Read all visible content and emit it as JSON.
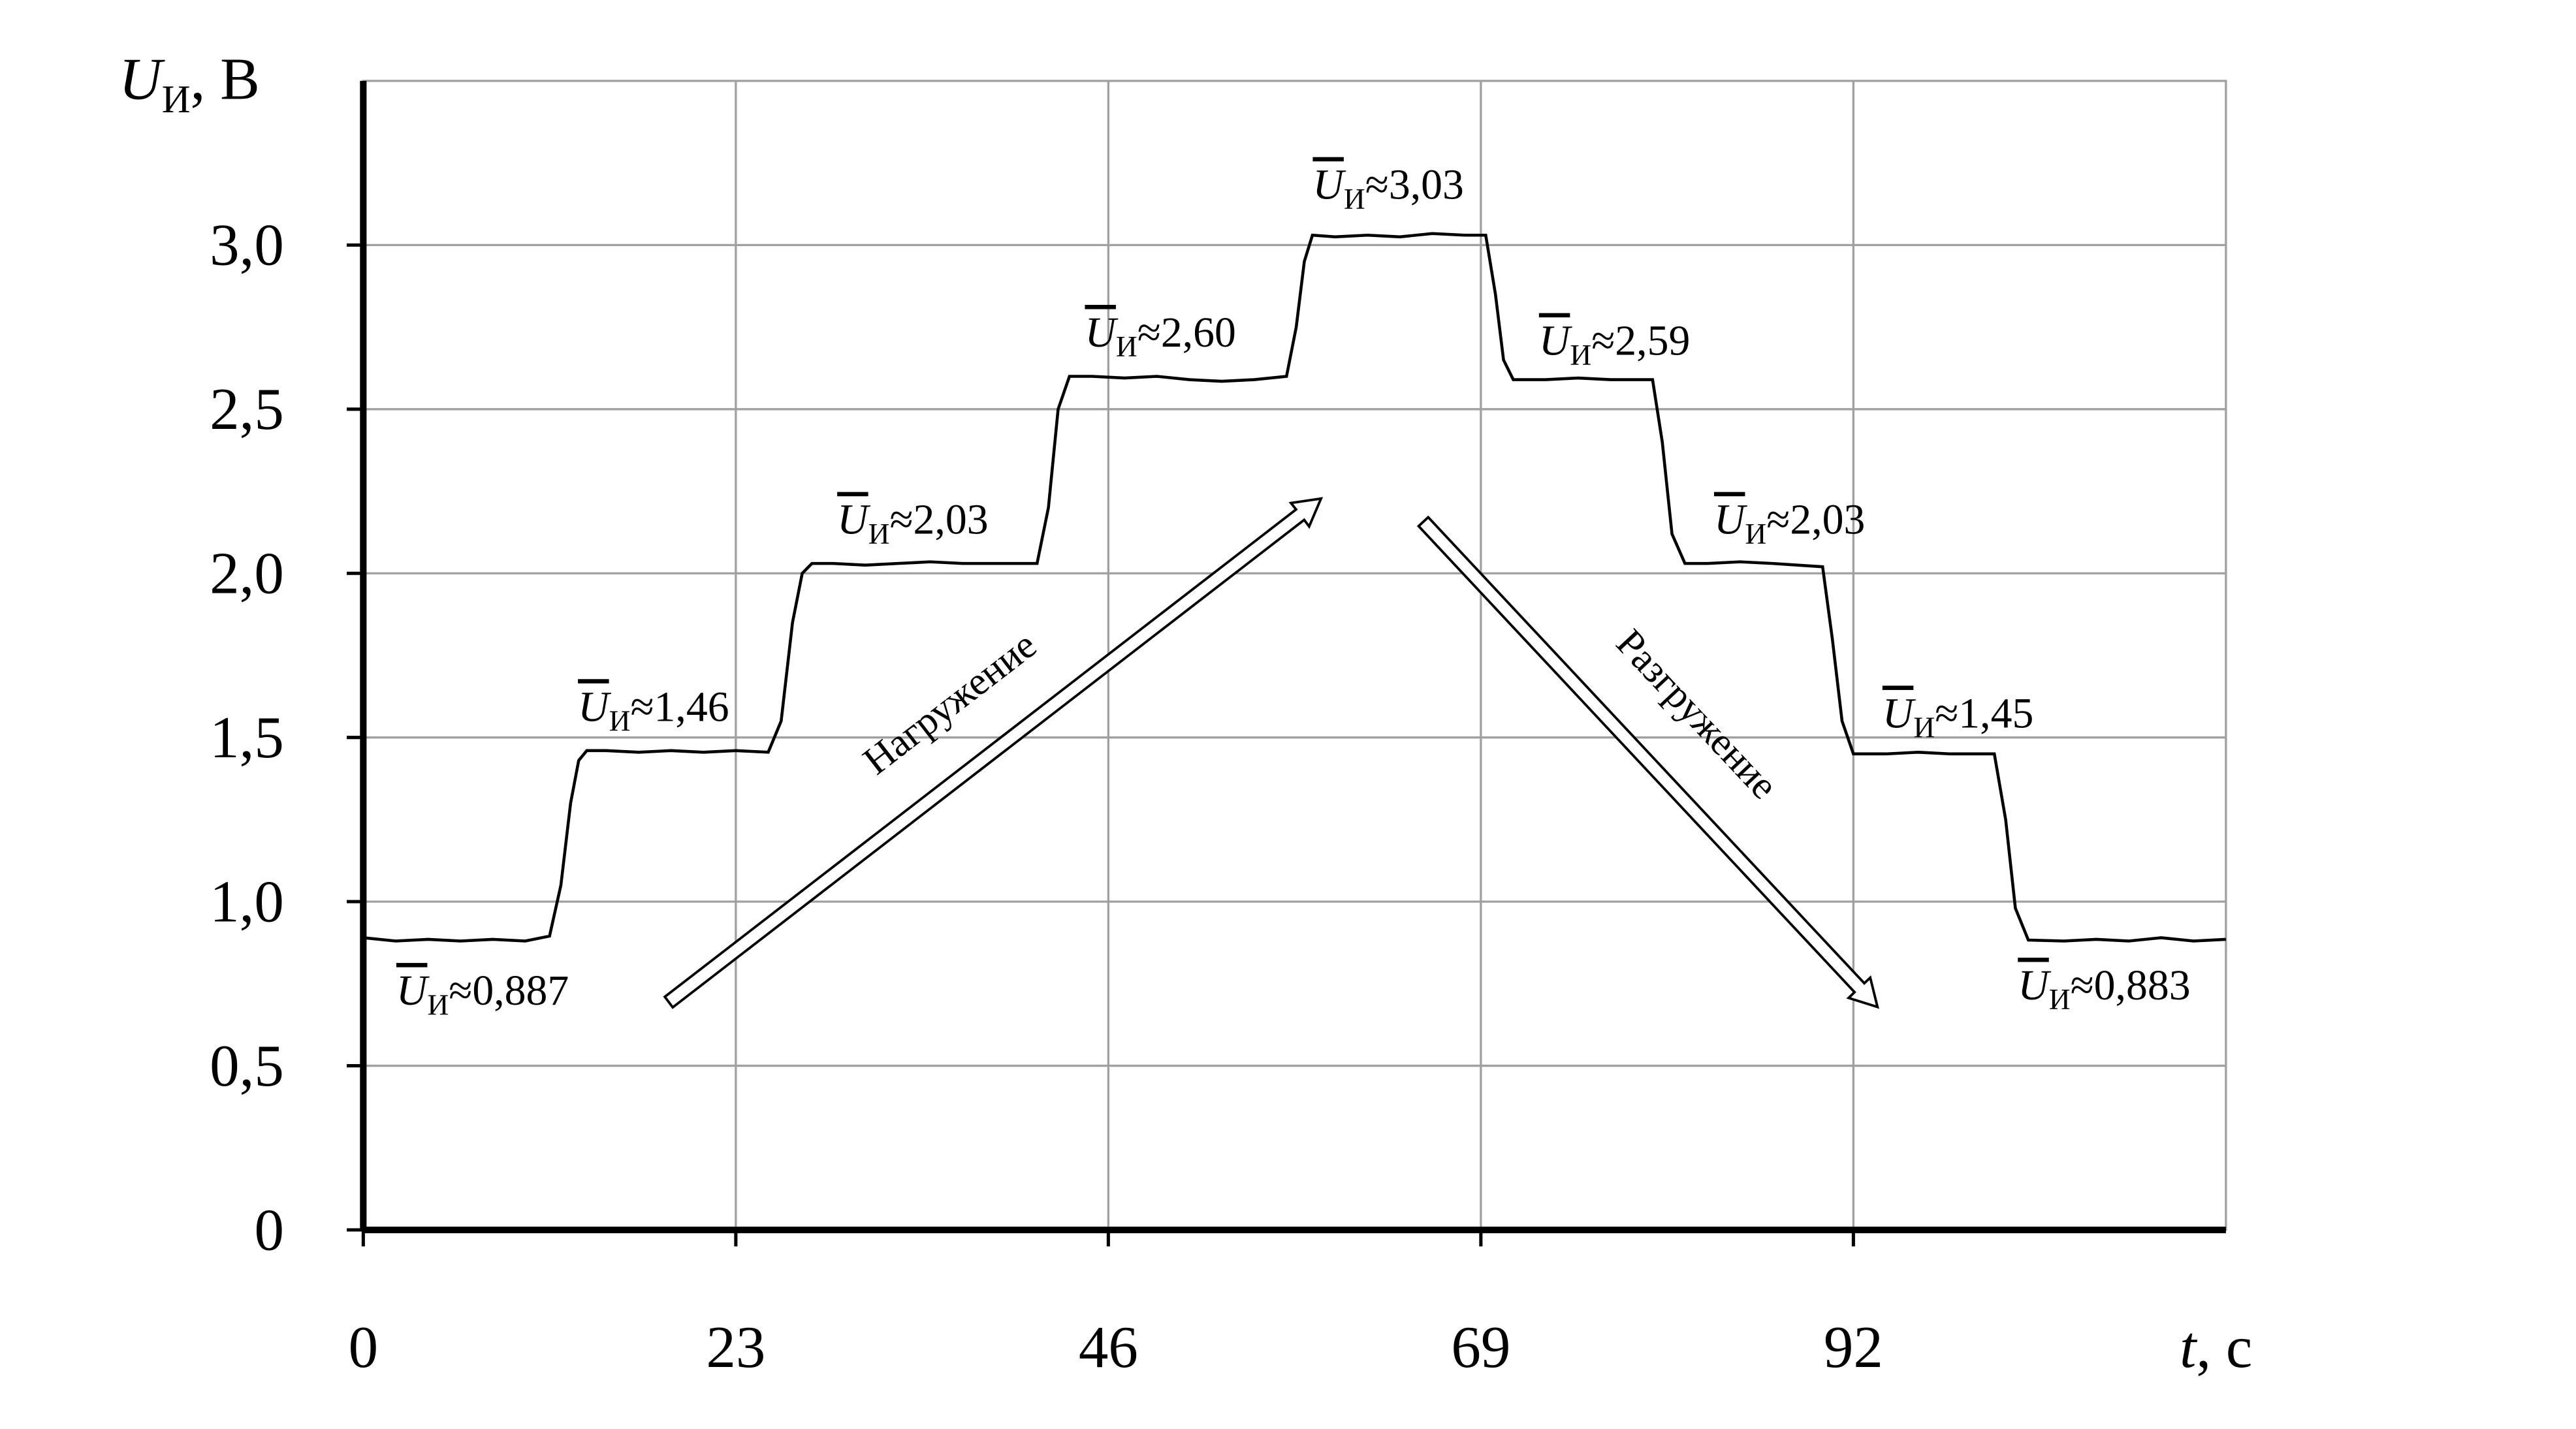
{
  "chart_data": {
    "type": "line",
    "ylabel": {
      "symbol": "U",
      "subscript": "И",
      "unit": ", В"
    },
    "xlabel": {
      "symbol": "t",
      "unit": ", с"
    },
    "x": [
      0,
      2,
      4,
      6,
      8,
      10,
      11.5,
      12.2,
      12.8,
      13.3,
      13.8,
      15,
      17,
      19,
      21,
      23,
      25,
      25.8,
      26.5,
      27.1,
      27.7,
      29,
      31,
      33,
      35,
      37,
      39,
      41.6,
      42.3,
      42.9,
      43.6,
      45,
      47,
      49,
      51,
      53,
      55,
      57,
      57.6,
      58.1,
      58.6,
      60,
      62,
      64,
      66,
      68,
      69.3,
      69.9,
      70.4,
      71,
      73,
      75,
      77,
      79.6,
      80.2,
      80.8,
      81.6,
      83,
      85,
      87,
      90.1,
      90.7,
      91.3,
      92,
      94,
      96,
      98,
      100.7,
      101.4,
      102,
      102.8,
      105,
      107,
      109,
      111,
      113,
      115
    ],
    "values": [
      0.89,
      0.88,
      0.885,
      0.88,
      0.885,
      0.88,
      0.895,
      1.05,
      1.3,
      1.43,
      1.46,
      1.46,
      1.455,
      1.46,
      1.455,
      1.46,
      1.455,
      1.55,
      1.85,
      2.0,
      2.03,
      2.03,
      2.025,
      2.03,
      2.035,
      2.03,
      2.03,
      2.03,
      2.2,
      2.5,
      2.6,
      2.6,
      2.595,
      2.6,
      2.59,
      2.585,
      2.59,
      2.6,
      2.75,
      2.95,
      3.03,
      3.025,
      3.03,
      3.025,
      3.035,
      3.03,
      3.03,
      2.85,
      2.65,
      2.59,
      2.59,
      2.595,
      2.59,
      2.59,
      2.4,
      2.12,
      2.03,
      2.03,
      2.035,
      2.03,
      2.02,
      1.8,
      1.55,
      1.45,
      1.45,
      1.455,
      1.45,
      1.45,
      1.25,
      0.98,
      0.883,
      0.88,
      0.885,
      0.88,
      0.89,
      0.88,
      0.885
    ],
    "color": "#000000",
    "xlim": [
      0,
      115
    ],
    "xticks": [
      0,
      23,
      46,
      69,
      92
    ],
    "ylim": [
      0,
      3.5
    ],
    "yticks": [
      0,
      {
        "value": 0.5,
        "label": "0,5"
      },
      {
        "value": 1,
        "label": "1,0"
      },
      {
        "value": 1.5,
        "label": "1,5"
      },
      {
        "value": 2,
        "label": "2,0"
      },
      {
        "value": 2.5,
        "label": "2,5"
      },
      {
        "value": 3,
        "label": "3,0"
      }
    ],
    "grid": true,
    "annotations": [
      {
        "symbol": "U",
        "subscript": "И",
        "label": "≈0,887",
        "value": 0.887
      },
      {
        "symbol": "U",
        "subscript": "И",
        "label": "≈1,46",
        "value": 1.46
      },
      {
        "symbol": "U",
        "subscript": "И",
        "label": "≈2,03",
        "value": 2.03
      },
      {
        "symbol": "U",
        "subscript": "И",
        "label": "≈2,60",
        "value": 2.6
      },
      {
        "symbol": "U",
        "subscript": "И",
        "label": "≈3,03",
        "value": 3.03
      },
      {
        "symbol": "U",
        "subscript": "И",
        "label": "≈2,59",
        "value": 2.59
      },
      {
        "symbol": "U",
        "subscript": "И",
        "label": "≈2,03",
        "value": 2.03
      },
      {
        "symbol": "U",
        "subscript": "И",
        "label": "≈1,45",
        "value": 1.45
      },
      {
        "symbol": "U",
        "subscript": "И",
        "label": "≈0,883",
        "value": 0.883
      }
    ],
    "arrows": [
      {
        "label": "Нагружение"
      },
      {
        "label": "Разгружение"
      }
    ]
  }
}
